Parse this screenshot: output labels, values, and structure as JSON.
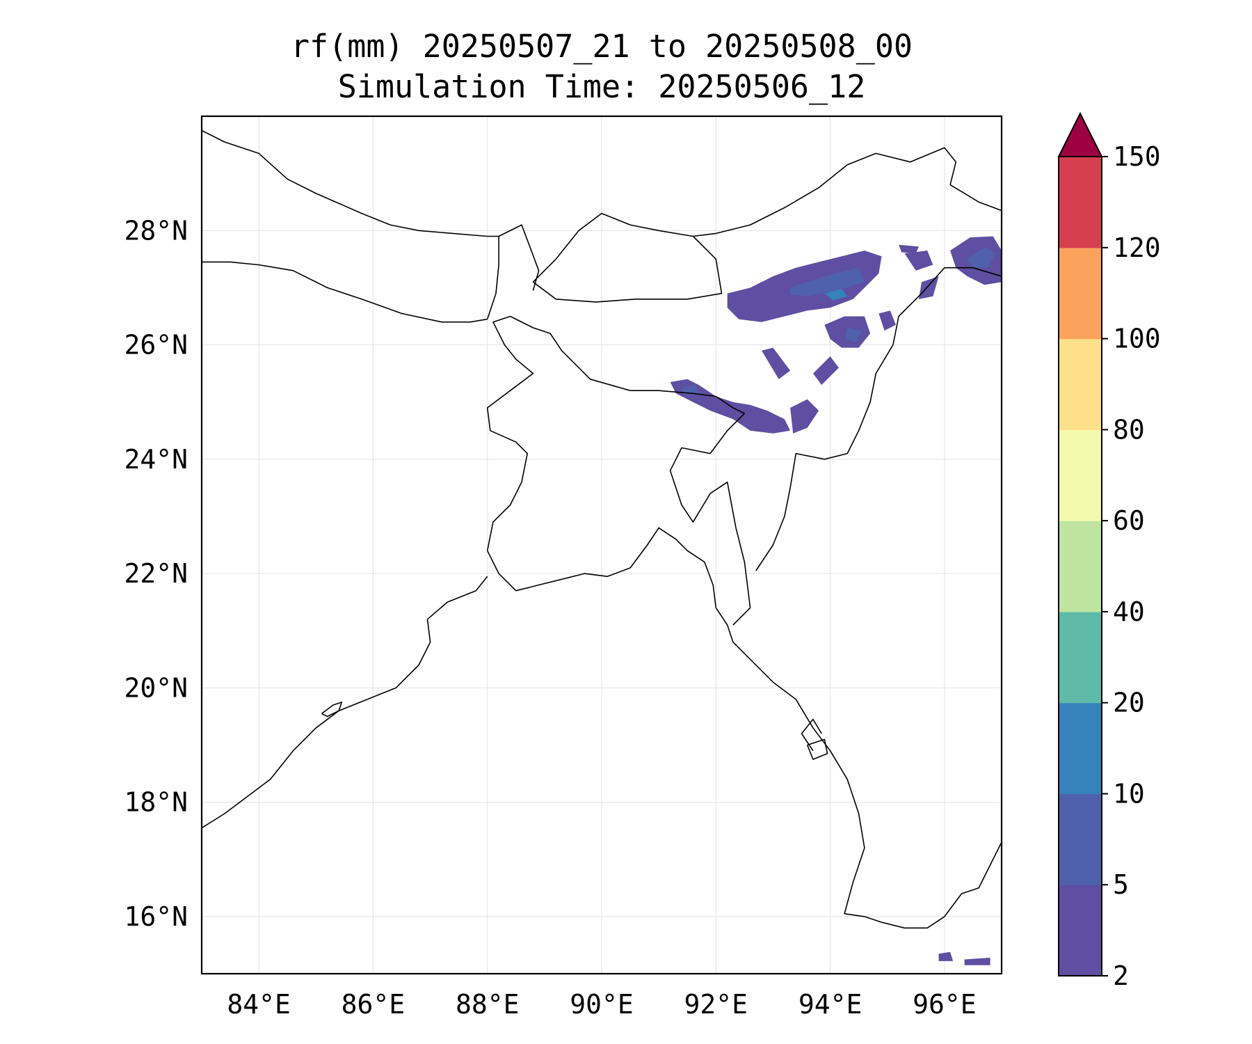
{
  "title": "rf(mm) 20250507_21 to 20250508_00",
  "subtitle": "Simulation Time: 20250506_12",
  "map": {
    "projection": "PlateCarree",
    "lon_range": [
      83.0,
      97.0
    ],
    "lat_range": [
      15.0,
      30.0
    ],
    "gridlines": true,
    "lon_ticks": [
      {
        "value": 84,
        "label": "84°E"
      },
      {
        "value": 86,
        "label": "86°E"
      },
      {
        "value": 88,
        "label": "88°E"
      },
      {
        "value": 90,
        "label": "90°E"
      },
      {
        "value": 92,
        "label": "92°E"
      },
      {
        "value": 94,
        "label": "94°E"
      },
      {
        "value": 96,
        "label": "96°E"
      }
    ],
    "lat_ticks": [
      {
        "value": 16,
        "label": "16°N"
      },
      {
        "value": 18,
        "label": "18°N"
      },
      {
        "value": 20,
        "label": "20°N"
      },
      {
        "value": 22,
        "label": "22°N"
      },
      {
        "value": 24,
        "label": "24°N"
      },
      {
        "value": 26,
        "label": "26°N"
      },
      {
        "value": 28,
        "label": "28°N"
      }
    ],
    "line_color": "#000000"
  },
  "colorbar": {
    "levels": [
      2,
      5,
      10,
      20,
      40,
      60,
      80,
      100,
      120,
      150
    ],
    "labels": [
      "2",
      "5",
      "10",
      "20",
      "40",
      "60",
      "80",
      "100",
      "120",
      "150"
    ],
    "colors": [
      "#5e4fa2",
      "#4f61aa",
      "#3682ba",
      "#5fbaa8",
      "#bee4a0",
      "#f4faad",
      "#fee08b",
      "#fba35c",
      "#d6404e",
      "#9e0142"
    ],
    "extend": "max"
  }
}
